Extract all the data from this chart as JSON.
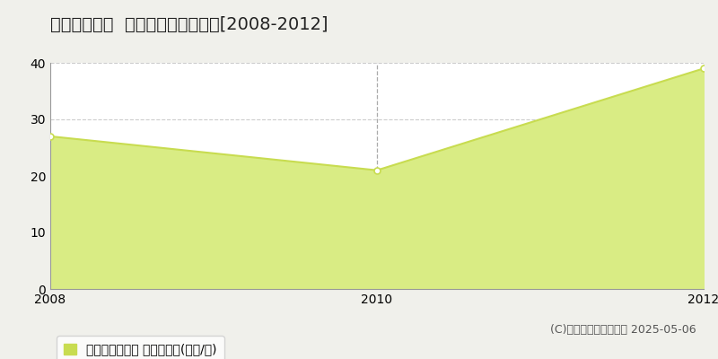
{
  "title": "江別市高砂町  マンション価格推移[2008-2012]",
  "years": [
    2008,
    2010,
    2012
  ],
  "values": [
    27.0,
    21.0,
    39.0
  ],
  "fill_color": "#d9ec84",
  "line_color": "#c8dc50",
  "marker_color": "#ffffff",
  "marker_edgecolor": "#c8dc50",
  "bg_color": "#f0f0eb",
  "plot_bg_color": "#ffffff",
  "xlim": [
    2008,
    2012
  ],
  "ylim": [
    0,
    40
  ],
  "yticks": [
    0,
    10,
    20,
    30,
    40
  ],
  "xticks": [
    2008,
    2010,
    2012
  ],
  "grid_color": "#cccccc",
  "vline_color": "#aaaaaa",
  "vline_x": 2010,
  "legend_label": "マンション価格 平均坪単価(万円/坪)",
  "copyright_text": "(C)土地価格ドットコム 2025-05-06",
  "title_fontsize": 14,
  "axis_fontsize": 10,
  "legend_fontsize": 10,
  "copyright_fontsize": 9
}
